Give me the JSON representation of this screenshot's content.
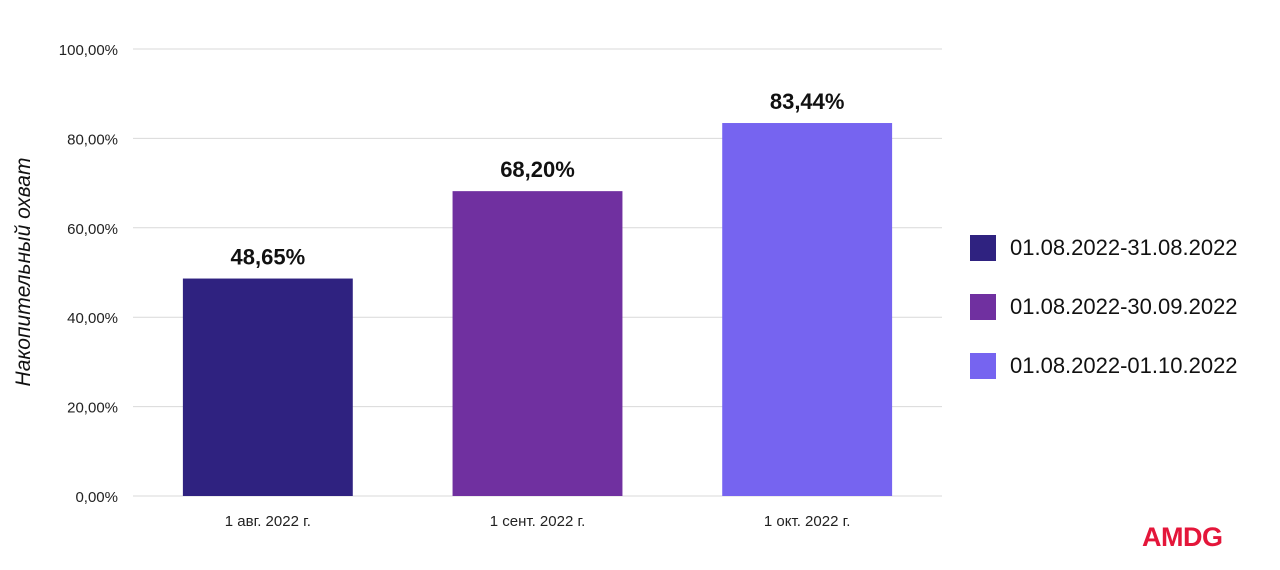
{
  "chart_data": {
    "type": "bar",
    "categories": [
      "1 авг. 2022 г.",
      "1 сент. 2022 г.",
      "1 окт. 2022 г."
    ],
    "values": [
      48.65,
      68.2,
      83.44
    ],
    "data_labels": [
      "48,65%",
      "68,20%",
      "83,44%"
    ],
    "ylabel": "Накопительный охват",
    "xlabel": "",
    "ylim": [
      0,
      100
    ],
    "yticks": [
      0,
      20,
      40,
      60,
      80,
      100
    ],
    "ytick_labels": [
      "0,00%",
      "20,00%",
      "40,00%",
      "60,00%",
      "80,00%",
      "100,00%"
    ],
    "grid": true,
    "legend_position": "right",
    "legend": [
      {
        "label": "01.08.2022-31.08.2022",
        "color": "#2f2280"
      },
      {
        "label": "01.08.2022-30.09.2022",
        "color": "#7030a0"
      },
      {
        "label": "01.08.2022-01.10.2022",
        "color": "#7664f0"
      }
    ],
    "colors": [
      "#2f2280",
      "#7030a0",
      "#7664f0"
    ]
  },
  "branding": {
    "logo_text": "AMDG",
    "logo_color": "#e4163a"
  }
}
